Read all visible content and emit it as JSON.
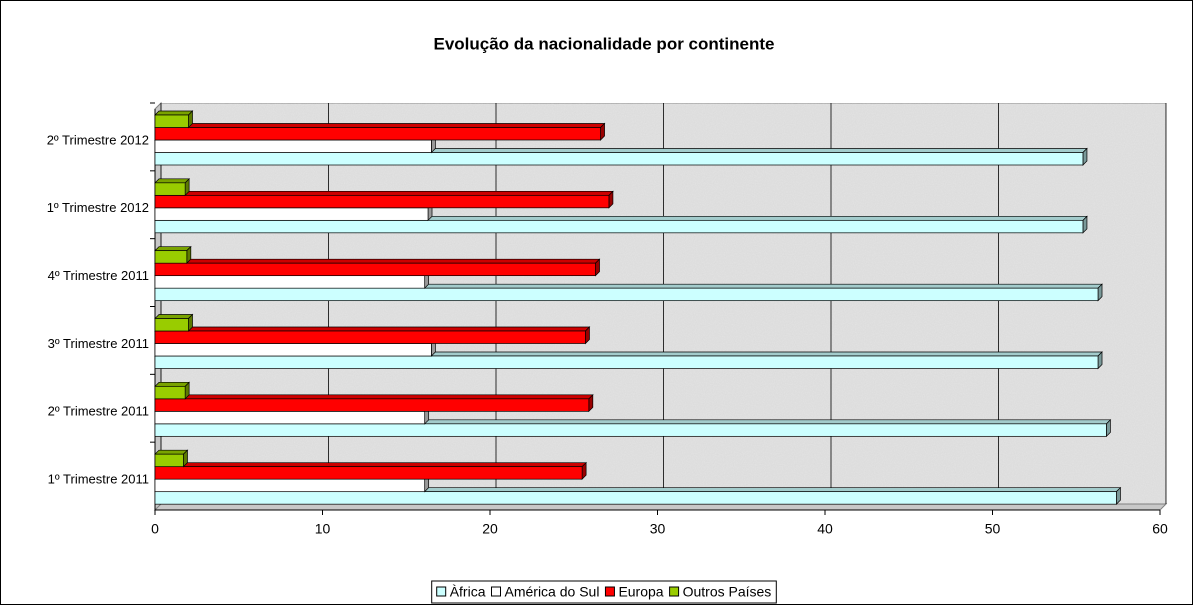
{
  "chart_data": {
    "type": "bar",
    "orientation": "horizontal",
    "title": "Evolução da nacionalidade por continente",
    "categories": [
      "1º Trimestre 2011",
      "2º Trimestre 2011",
      "3º Trimestre 2011",
      "4º Trimestre 2011",
      "1º Trimestre 2012",
      "2º Trimestre 2012"
    ],
    "series": [
      {
        "name": "Àfrica",
        "color": "#ccffff",
        "values": [
          57.4,
          56.8,
          56.3,
          56.3,
          55.4,
          55.4
        ]
      },
      {
        "name": "América do Sul",
        "color": "#ffffff",
        "values": [
          16.1,
          16.1,
          16.5,
          16.1,
          16.3,
          16.5
        ]
      },
      {
        "name": "Europa",
        "color": "#ff0000",
        "values": [
          25.5,
          25.9,
          25.7,
          26.3,
          27.1,
          26.6
        ]
      },
      {
        "name": "Outros Países",
        "color": "#99cc00",
        "values": [
          1.7,
          1.8,
          2.0,
          1.9,
          1.8,
          2.0
        ]
      }
    ],
    "xlim": [
      0,
      60
    ],
    "xticks": [
      0,
      10,
      20,
      30,
      40,
      50,
      60
    ],
    "grid": true,
    "legend": "bottom"
  }
}
